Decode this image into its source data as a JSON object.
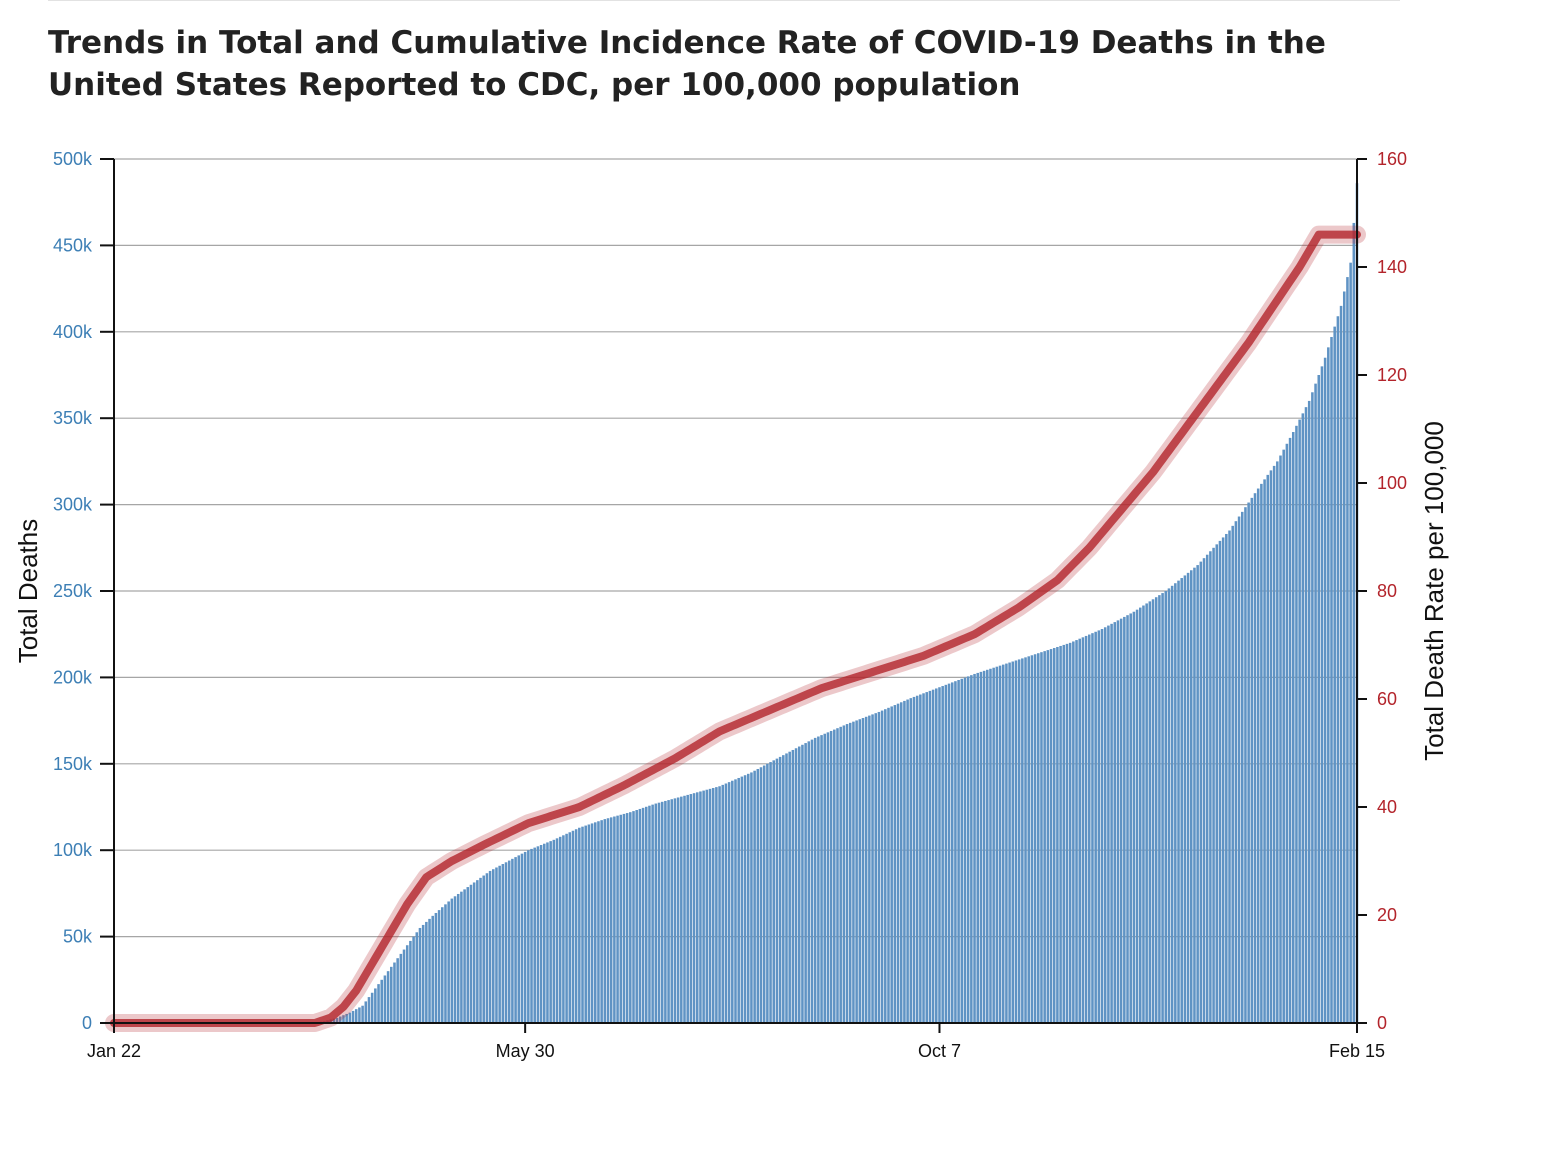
{
  "title": "Trends in Total and Cumulative Incidence Rate of COVID-19 Deaths in the United States Reported to CDC, per 100,000 population",
  "colors": {
    "bars": "#5f93c4",
    "line": "#b3242b",
    "left_axis": "#3d7fb5",
    "right_axis": "#b3242b",
    "grid": "#a6a6a6"
  },
  "chart_data": {
    "type": "bar",
    "title": "Trends in Total and Cumulative Incidence Rate of COVID-19 Deaths in the United States Reported to CDC, per 100,000 population",
    "ylabel": "Total Deaths",
    "y2label": "Total Death Rate per 100,000",
    "xlabel": "",
    "x_range": [
      "Jan 22",
      "Feb 15"
    ],
    "x_ticks": [
      {
        "label": "Jan 22",
        "day": 0
      },
      {
        "label": "May 30",
        "day": 129
      },
      {
        "label": "Oct 7",
        "day": 259
      },
      {
        "label": "Feb 15",
        "day": 390
      }
    ],
    "ylim": [
      0,
      500000
    ],
    "y2lim": [
      0,
      160
    ],
    "y_ticks": [
      {
        "label": "0",
        "value": 0
      },
      {
        "label": "50k",
        "value": 50000
      },
      {
        "label": "100k",
        "value": 100000
      },
      {
        "label": "150k",
        "value": 150000
      },
      {
        "label": "200k",
        "value": 200000
      },
      {
        "label": "250k",
        "value": 250000
      },
      {
        "label": "300k",
        "value": 300000
      },
      {
        "label": "350k",
        "value": 350000
      },
      {
        "label": "400k",
        "value": 400000
      },
      {
        "label": "450k",
        "value": 450000
      },
      {
        "label": "500k",
        "value": 500000
      }
    ],
    "y2_ticks": [
      {
        "label": "0",
        "value": 0
      },
      {
        "label": "20",
        "value": 20
      },
      {
        "label": "40",
        "value": 40
      },
      {
        "label": "60",
        "value": 60
      },
      {
        "label": "80",
        "value": 80
      },
      {
        "label": "100",
        "value": 100
      },
      {
        "label": "120",
        "value": 120
      },
      {
        "label": "140",
        "value": 140
      },
      {
        "label": "160",
        "value": 160
      }
    ],
    "grid": true,
    "series": [
      {
        "kind": "bar",
        "axis": "left",
        "points": [
          [
            0,
            0
          ],
          [
            38,
            0
          ],
          [
            62,
            0
          ],
          [
            66,
            1000
          ],
          [
            70,
            3000
          ],
          [
            74,
            6000
          ],
          [
            78,
            10000
          ],
          [
            82,
            20000
          ],
          [
            86,
            30000
          ],
          [
            90,
            40000
          ],
          [
            96,
            55000
          ],
          [
            100,
            62000
          ],
          [
            106,
            72000
          ],
          [
            112,
            80000
          ],
          [
            118,
            88000
          ],
          [
            124,
            94000
          ],
          [
            130,
            100000
          ],
          [
            138,
            106000
          ],
          [
            146,
            113000
          ],
          [
            154,
            118000
          ],
          [
            162,
            122000
          ],
          [
            170,
            127000
          ],
          [
            180,
            132000
          ],
          [
            190,
            137000
          ],
          [
            200,
            145000
          ],
          [
            210,
            155000
          ],
          [
            220,
            165000
          ],
          [
            230,
            173000
          ],
          [
            240,
            180000
          ],
          [
            250,
            188000
          ],
          [
            260,
            195000
          ],
          [
            270,
            202000
          ],
          [
            280,
            208000
          ],
          [
            290,
            214000
          ],
          [
            300,
            220000
          ],
          [
            310,
            228000
          ],
          [
            320,
            238000
          ],
          [
            330,
            250000
          ],
          [
            340,
            265000
          ],
          [
            350,
            285000
          ],
          [
            360,
            312000
          ],
          [
            365,
            325000
          ],
          [
            370,
            342000
          ],
          [
            375,
            360000
          ],
          [
            380,
            385000
          ],
          [
            385,
            415000
          ],
          [
            388,
            440000
          ],
          [
            390,
            486000
          ]
        ]
      },
      {
        "kind": "line",
        "axis": "right",
        "points": [
          [
            0,
            0
          ],
          [
            63,
            0
          ],
          [
            68,
            1
          ],
          [
            72,
            3
          ],
          [
            76,
            6
          ],
          [
            80,
            10
          ],
          [
            84,
            14
          ],
          [
            88,
            18
          ],
          [
            92,
            22
          ],
          [
            98,
            27
          ],
          [
            106,
            30
          ],
          [
            116,
            33
          ],
          [
            130,
            37
          ],
          [
            146,
            40
          ],
          [
            160,
            44
          ],
          [
            176,
            49
          ],
          [
            190,
            54
          ],
          [
            206,
            58
          ],
          [
            222,
            62
          ],
          [
            238,
            65
          ],
          [
            254,
            68
          ],
          [
            270,
            72
          ],
          [
            284,
            77
          ],
          [
            296,
            82
          ],
          [
            306,
            88
          ],
          [
            316,
            95
          ],
          [
            326,
            102
          ],
          [
            336,
            110
          ],
          [
            346,
            118
          ],
          [
            356,
            126
          ],
          [
            364,
            133
          ],
          [
            372,
            140
          ],
          [
            378,
            146
          ],
          [
            390,
            146
          ]
        ]
      }
    ]
  }
}
